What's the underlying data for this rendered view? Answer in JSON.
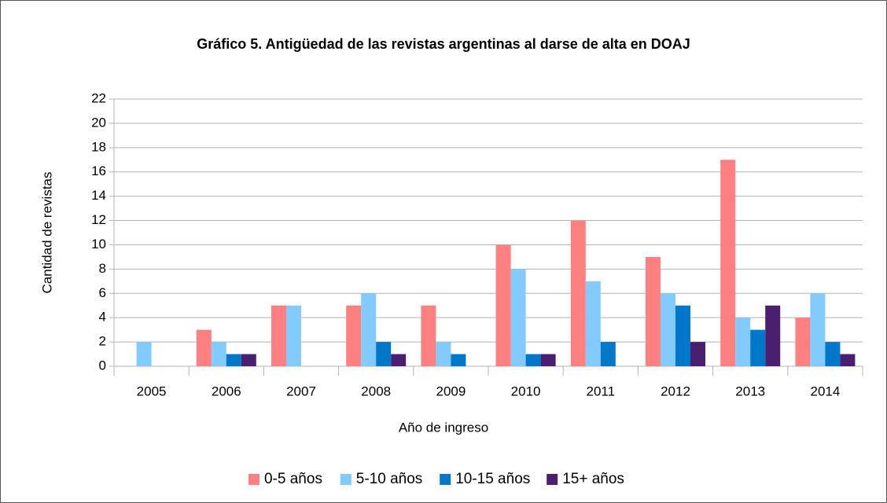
{
  "chart_data": {
    "type": "bar",
    "title": "Gráfico 5. Antigüedad de las revistas argentinas al darse de alta en DOAJ",
    "x_label": "Año de ingreso",
    "y_label": "Cantidad de revistas",
    "categories": [
      "2005",
      "2006",
      "2007",
      "2008",
      "2009",
      "2010",
      "2011",
      "2012",
      "2013",
      "2014"
    ],
    "series": [
      {
        "name": "0-5 años",
        "color": "#ff8080",
        "values": [
          0,
          3,
          5,
          5,
          5,
          10,
          12,
          9,
          17,
          4
        ]
      },
      {
        "name": "5-10 años",
        "color": "#83caff",
        "values": [
          2,
          2,
          5,
          6,
          2,
          8,
          7,
          6,
          4,
          6
        ]
      },
      {
        "name": "10-15 años",
        "color": "#0077c8",
        "values": [
          0,
          1,
          0,
          2,
          1,
          1,
          2,
          5,
          3,
          2
        ]
      },
      {
        "name": "15+ años",
        "color": "#4b1f6f",
        "values": [
          0,
          1,
          0,
          1,
          0,
          1,
          0,
          2,
          5,
          1
        ]
      }
    ],
    "ylim": [
      0,
      22
    ],
    "yticks": [
      0,
      2,
      4,
      6,
      8,
      10,
      12,
      14,
      16,
      18,
      20,
      22
    ],
    "grid": true,
    "legend": "bottom"
  }
}
